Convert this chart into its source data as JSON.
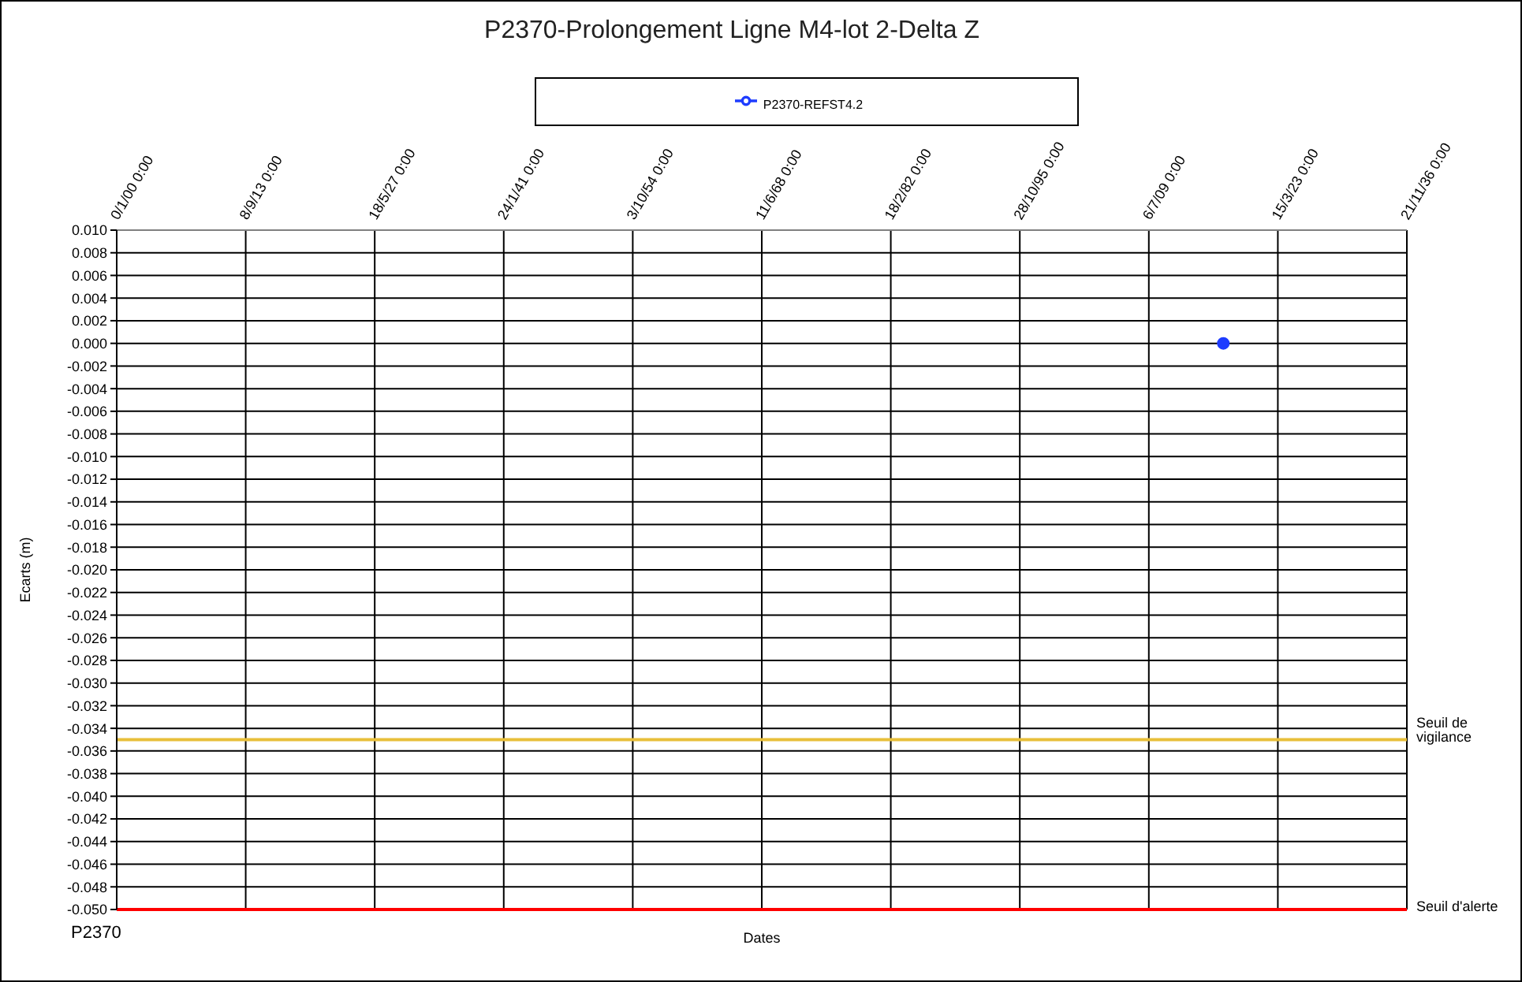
{
  "chart_data": {
    "type": "line",
    "title": "P2370-Prolongement Ligne M4-lot 2-Delta Z",
    "xlabel": "Dates",
    "ylabel": "Ecarts (m)",
    "annotations": [
      "P2370"
    ],
    "x": [
      "2017-06"
    ],
    "series": [
      {
        "name": "P2370-REFST4.2",
        "color": "#1e3cff",
        "values": [
          0
        ]
      }
    ],
    "xlim": [
      "1899-12-31",
      "2036-11-21"
    ],
    "xticks": [
      {
        "value": "1899-12-31",
        "label": "0/1/00 0:00"
      },
      {
        "value": "1913-09-08",
        "label": "8/9/13 0:00"
      },
      {
        "value": "1927-05-18",
        "label": "18/5/27 0:00"
      },
      {
        "value": "1941-01-24",
        "label": "24/1/41 0:00"
      },
      {
        "value": "1954-10-03",
        "label": "3/10/54 0:00"
      },
      {
        "value": "1968-06-11",
        "label": "11/6/68 0:00"
      },
      {
        "value": "1982-02-18",
        "label": "18/2/82 0:00"
      },
      {
        "value": "1995-10-28",
        "label": "28/10/95 0:00"
      },
      {
        "value": "2009-07-06",
        "label": "6/7/09 0:00"
      },
      {
        "value": "2023-03-15",
        "label": "15/3/23 0:00"
      },
      {
        "value": "2036-11-21",
        "label": "21/11/36 0:00"
      }
    ],
    "ylim": [
      -0.05,
      0.01
    ],
    "yticks": [
      {
        "value": -0.05,
        "label": "-0.050"
      },
      {
        "value": -0.048,
        "label": "-0.048"
      },
      {
        "value": -0.046,
        "label": "-0.046"
      },
      {
        "value": -0.044,
        "label": "-0.044"
      },
      {
        "value": -0.042,
        "label": "-0.042"
      },
      {
        "value": -0.04,
        "label": "-0.040"
      },
      {
        "value": -0.038,
        "label": "-0.038"
      },
      {
        "value": -0.036,
        "label": "-0.036"
      },
      {
        "value": -0.034,
        "label": "-0.034"
      },
      {
        "value": -0.032,
        "label": "-0.032"
      },
      {
        "value": -0.03,
        "label": "-0.030"
      },
      {
        "value": -0.028,
        "label": "-0.028"
      },
      {
        "value": -0.026,
        "label": "-0.026"
      },
      {
        "value": -0.024,
        "label": "-0.024"
      },
      {
        "value": -0.022,
        "label": "-0.022"
      },
      {
        "value": -0.02,
        "label": "-0.020"
      },
      {
        "value": -0.018,
        "label": "-0.018"
      },
      {
        "value": -0.016,
        "label": "-0.016"
      },
      {
        "value": -0.014,
        "label": "-0.014"
      },
      {
        "value": -0.012,
        "label": "-0.012"
      },
      {
        "value": -0.01,
        "label": "-0.010"
      },
      {
        "value": -0.008,
        "label": "-0.008"
      },
      {
        "value": -0.006,
        "label": "-0.006"
      },
      {
        "value": -0.004,
        "label": "-0.004"
      },
      {
        "value": -0.002,
        "label": "-0.002"
      },
      {
        "value": 0,
        "label": "0.000"
      },
      {
        "value": 0.002,
        "label": "0.002"
      },
      {
        "value": 0.004,
        "label": "0.004"
      },
      {
        "value": 0.006,
        "label": "0.006"
      },
      {
        "value": 0.008,
        "label": "0.008"
      },
      {
        "value": 0.01,
        "label": "0.010"
      }
    ],
    "grid": true,
    "legend": "top",
    "marker": "circle",
    "ref_lines": [
      {
        "axis": "y",
        "value": -0.035,
        "label": "Seuil de vigilance",
        "color": "#e8bf3a"
      },
      {
        "axis": "y",
        "value": -0.05,
        "label": "Seuil d'alerte",
        "color": "#ff0000"
      }
    ]
  }
}
